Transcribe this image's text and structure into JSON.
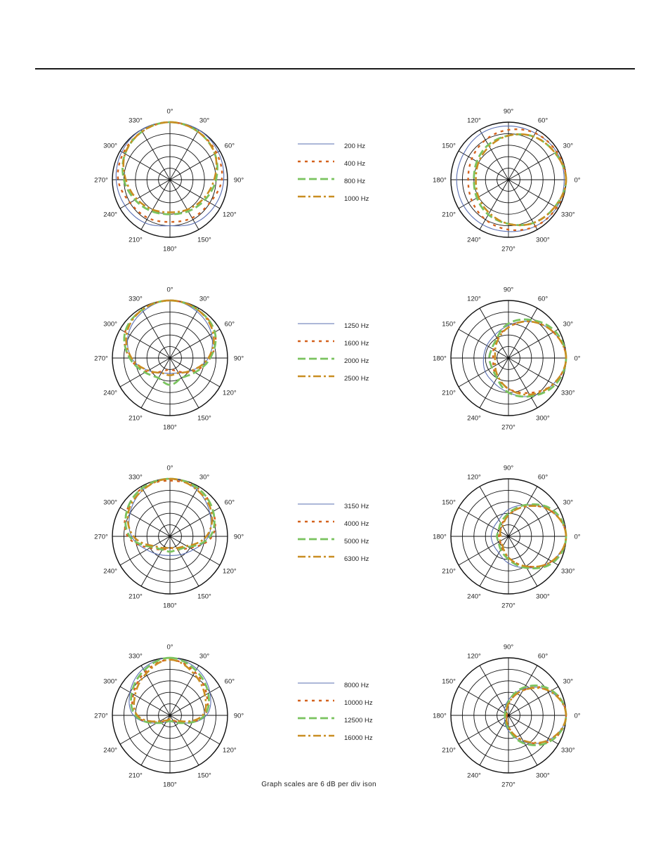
{
  "note": "Graph scales are 6 dB per div ison",
  "styles": {
    "lines": [
      {
        "color": "#5a6fb2",
        "dash": "",
        "width": 1.1
      },
      {
        "color": "#d4621e",
        "dash": "4 6",
        "width": 2.4
      },
      {
        "color": "#7ac35f",
        "dash": "11 5",
        "width": 2.8
      },
      {
        "color": "#c98e22",
        "dash": "11 4 3 4",
        "width": 2.6
      }
    ]
  },
  "chart_data": [
    {
      "type": "polar",
      "view": "horizontal",
      "scale_db_per_division": 6,
      "angle_labels": [
        "0°",
        "30°",
        "60°",
        "90°",
        "120°",
        "150°",
        "180°",
        "210°",
        "240°",
        "270°",
        "300°",
        "330°"
      ],
      "legend": [
        "200 Hz",
        "400 Hz",
        "800 Hz",
        "1000 Hz"
      ],
      "series": [
        {
          "name": "200 Hz",
          "r": [
            0,
            0,
            -1,
            -2,
            -3,
            -4,
            -6,
            -4,
            -3,
            -2,
            -1,
            0
          ]
        },
        {
          "name": "400 Hz",
          "r": [
            0,
            -1,
            -2,
            -3,
            -6,
            -7,
            -8,
            -7,
            -6,
            -3,
            -2,
            -1
          ]
        },
        {
          "name": "800 Hz",
          "r": [
            0,
            -1,
            -3,
            -6,
            -9,
            -11,
            -12,
            -11,
            -9,
            -6,
            -3,
            -1
          ]
        },
        {
          "name": "1000 Hz",
          "r": [
            0,
            -1,
            -3,
            -7,
            -10,
            -12,
            -13,
            -12,
            -10,
            -7,
            -3,
            -1
          ]
        }
      ]
    },
    {
      "type": "polar",
      "view": "vertical",
      "scale_db_per_division": 6,
      "angle_labels": [
        "0°",
        "30°",
        "60°",
        "90°",
        "120°",
        "150°",
        "180°",
        "210°",
        "240°",
        "270°",
        "300°",
        "330°"
      ],
      "series": [
        {
          "name": "200 Hz",
          "r": [
            -1,
            -1,
            -2,
            -2,
            -2,
            -3,
            -3,
            -3,
            -3,
            -3,
            -2,
            -1
          ]
        },
        {
          "name": "400 Hz",
          "r": [
            0,
            -1,
            -2,
            -4,
            -6,
            -8,
            -9,
            -8,
            -6,
            -4,
            -2,
            -1
          ]
        },
        {
          "name": "800 Hz",
          "r": [
            0,
            -2,
            -4,
            -7,
            -9,
            -11,
            -12,
            -11,
            -9,
            -7,
            -4,
            -2
          ]
        },
        {
          "name": "1000 Hz",
          "r": [
            0,
            -2,
            -4,
            -7,
            -10,
            -12,
            -13,
            -12,
            -10,
            -7,
            -4,
            -2
          ]
        }
      ]
    },
    {
      "type": "polar",
      "view": "horizontal",
      "scale_db_per_division": 6,
      "angle_labels": [
        "0°",
        "30°",
        "60°",
        "90°",
        "120°",
        "150°",
        "180°",
        "210°",
        "240°",
        "270°",
        "300°",
        "330°"
      ],
      "legend": [
        "1250 Hz",
        "1600 Hz",
        "2000 Hz",
        "2500 Hz"
      ],
      "series": [
        {
          "name": "1250 Hz",
          "r": [
            0,
            -2,
            -5,
            -10,
            -17,
            -21,
            -22,
            -21,
            -17,
            -10,
            -5,
            -2
          ]
        },
        {
          "name": "1600 Hz",
          "r": [
            0,
            -1,
            -3,
            -9,
            -16,
            -22,
            -24,
            -22,
            -16,
            -9,
            -3,
            -1
          ]
        },
        {
          "name": "2000 Hz",
          "r": [
            0,
            -1,
            -3,
            -9,
            -15,
            -18,
            -16,
            -18,
            -15,
            -9,
            -3,
            -1
          ]
        },
        {
          "name": "2500 Hz",
          "r": [
            0,
            -1,
            -4,
            -10,
            -17,
            -21,
            -21,
            -21,
            -17,
            -10,
            -4,
            -1
          ]
        }
      ]
    },
    {
      "type": "polar",
      "view": "vertical",
      "scale_db_per_division": 6,
      "angle_labels": [
        "0°",
        "30°",
        "60°",
        "90°",
        "120°",
        "150°",
        "180°",
        "210°",
        "240°",
        "270°",
        "300°",
        "330°"
      ],
      "series": [
        {
          "name": "1250 Hz",
          "r": [
            0,
            -3,
            -8,
            -13,
            -16,
            -17,
            -17,
            -16,
            -15,
            -12,
            -7,
            -3
          ]
        },
        {
          "name": "1600 Hz",
          "r": [
            0,
            -3,
            -8,
            -14,
            -18,
            -21,
            -22,
            -21,
            -18,
            -14,
            -9,
            -3
          ]
        },
        {
          "name": "2000 Hz",
          "r": [
            0,
            -2,
            -7,
            -12,
            -18,
            -20,
            -20,
            -20,
            -18,
            -12,
            -7,
            -2
          ]
        },
        {
          "name": "2500 Hz",
          "r": [
            0,
            -3,
            -8,
            -14,
            -19,
            -22,
            -23,
            -22,
            -19,
            -14,
            -8,
            -3
          ]
        }
      ]
    },
    {
      "type": "polar",
      "view": "horizontal",
      "scale_db_per_division": 6,
      "angle_labels": [
        "0°",
        "30°",
        "60°",
        "90°",
        "120°",
        "150°",
        "180°",
        "210°",
        "240°",
        "270°",
        "300°",
        "330°"
      ],
      "legend": [
        "3150 Hz",
        "4000 Hz",
        "5000 Hz",
        "6300 Hz"
      ],
      "series": [
        {
          "name": "3150 Hz",
          "r": [
            0,
            -2,
            -6,
            -10,
            -16,
            -19,
            -20,
            -19,
            -16,
            -10,
            -6,
            -2
          ]
        },
        {
          "name": "4000 Hz",
          "r": [
            -1,
            -1,
            -4,
            -8,
            -18,
            -22,
            -24,
            -22,
            -18,
            -8,
            -4,
            -1
          ]
        },
        {
          "name": "5000 Hz",
          "r": [
            0,
            -1,
            -4,
            -9,
            -19,
            -22,
            -22,
            -22,
            -19,
            -9,
            -4,
            -1
          ]
        },
        {
          "name": "6300 Hz",
          "r": [
            0,
            -2,
            -5,
            -11,
            -20,
            -23,
            -24,
            -23,
            -20,
            -11,
            -5,
            -2
          ]
        }
      ]
    },
    {
      "type": "polar",
      "view": "vertical",
      "scale_db_per_division": 6,
      "angle_labels": [
        "0°",
        "30°",
        "60°",
        "90°",
        "120°",
        "150°",
        "180°",
        "210°",
        "240°",
        "270°",
        "300°",
        "330°"
      ],
      "series": [
        {
          "name": "3150 Hz",
          "r": [
            0,
            -4,
            -11,
            -16,
            -20,
            -21,
            -21,
            -21,
            -20,
            -16,
            -11,
            -4
          ]
        },
        {
          "name": "4000 Hz",
          "r": [
            0,
            -4,
            -12,
            -19,
            -23,
            -25,
            -25,
            -25,
            -23,
            -19,
            -12,
            -4
          ]
        },
        {
          "name": "5000 Hz",
          "r": [
            0,
            -3,
            -11,
            -18,
            -22,
            -24,
            -24,
            -24,
            -22,
            -18,
            -11,
            -3
          ]
        },
        {
          "name": "6300 Hz",
          "r": [
            0,
            -4,
            -12,
            -19,
            -24,
            -25,
            -26,
            -25,
            -24,
            -19,
            -12,
            -4
          ]
        }
      ]
    },
    {
      "type": "polar",
      "view": "horizontal",
      "scale_db_per_division": 6,
      "angle_labels": [
        "0°",
        "30°",
        "60°",
        "90°",
        "120°",
        "150°",
        "180°",
        "210°",
        "240°",
        "270°",
        "300°",
        "330°"
      ],
      "legend": [
        "8000 Hz",
        "10000 Hz",
        "12500 Hz",
        "16000 Hz"
      ],
      "series": [
        {
          "name": "8000 Hz",
          "r": [
            0,
            -2,
            -6,
            -11,
            -22,
            -26,
            -27,
            -26,
            -22,
            -11,
            -6,
            -2
          ]
        },
        {
          "name": "10000 Hz",
          "r": [
            -1,
            -4,
            -8,
            -12,
            -23,
            -27,
            -28,
            -27,
            -23,
            -12,
            -8,
            -4
          ]
        },
        {
          "name": "12500 Hz",
          "r": [
            0,
            -3,
            -7,
            -12,
            -22,
            -26,
            -27,
            -26,
            -22,
            -12,
            -7,
            -3
          ]
        },
        {
          "name": "16000 Hz",
          "r": [
            -1,
            -5,
            -9,
            -13,
            -24,
            -27,
            -28,
            -27,
            -24,
            -13,
            -9,
            -5
          ]
        }
      ]
    },
    {
      "type": "polar",
      "view": "vertical",
      "scale_db_per_division": 6,
      "angle_labels": [
        "0°",
        "30°",
        "60°",
        "90°",
        "120°",
        "150°",
        "180°",
        "210°",
        "240°",
        "270°",
        "300°",
        "330°"
      ],
      "series": [
        {
          "name": "8000 Hz",
          "r": [
            0,
            -5,
            -14,
            -22,
            -26,
            -28,
            -28,
            -28,
            -26,
            -22,
            -14,
            -5
          ]
        },
        {
          "name": "10000 Hz",
          "r": [
            0,
            -4,
            -15,
            -24,
            -28,
            -29,
            -29,
            -29,
            -28,
            -24,
            -15,
            -4
          ]
        },
        {
          "name": "12500 Hz",
          "r": [
            0,
            -4,
            -13,
            -23,
            -27,
            -28,
            -28,
            -28,
            -27,
            -23,
            -13,
            -4
          ]
        },
        {
          "name": "16000 Hz",
          "r": [
            0,
            -5,
            -15,
            -24,
            -28,
            -29,
            -29,
            -29,
            -28,
            -24,
            -15,
            -5
          ]
        }
      ]
    }
  ]
}
